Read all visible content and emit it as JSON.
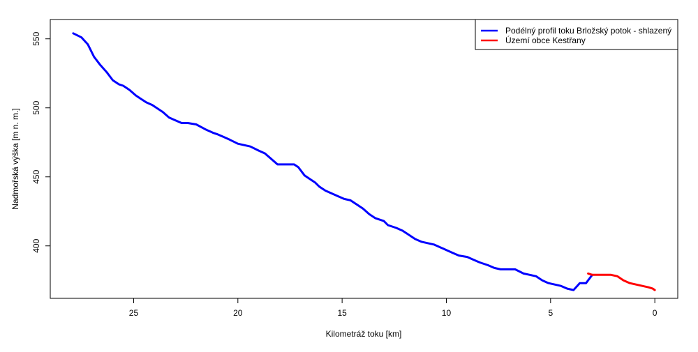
{
  "chart_data": {
    "type": "line",
    "title": "",
    "xlabel": "Kilometráž toku [km]",
    "ylabel": "Nadmořská výška [m n. m.]",
    "xlim": [
      29.0,
      -1.1
    ],
    "ylim": [
      362,
      564
    ],
    "x_ticks": [
      25,
      20,
      15,
      10,
      5,
      0
    ],
    "y_ticks": [
      400,
      450,
      500,
      550
    ],
    "legend_position": "top-right",
    "series": [
      {
        "name": "Podélný profil toku Brložský potok - shlazený",
        "color": "#0000ff",
        "x": [
          27.9,
          27.5,
          27.2,
          26.9,
          26.6,
          26.3,
          26.0,
          25.7,
          25.5,
          25.2,
          24.9,
          24.7,
          24.4,
          24.1,
          23.9,
          23.6,
          23.3,
          23.0,
          22.7,
          22.4,
          22.0,
          21.5,
          21.2,
          21.0,
          20.7,
          20.4,
          20.0,
          19.7,
          19.4,
          19.0,
          18.7,
          18.4,
          18.1,
          17.8,
          17.6,
          17.3,
          17.1,
          16.8,
          16.5,
          16.3,
          16.1,
          15.8,
          15.5,
          15.2,
          14.9,
          14.6,
          14.3,
          14.0,
          13.7,
          13.4,
          13.0,
          12.8,
          12.4,
          12.1,
          11.8,
          11.5,
          11.2,
          10.9,
          10.6,
          10.3,
          10.0,
          9.7,
          9.4,
          9.0,
          8.7,
          8.4,
          8.0,
          7.7,
          7.4,
          7.0,
          6.7,
          6.3,
          6.0,
          5.7,
          5.4,
          5.1,
          4.8,
          4.5,
          4.2,
          3.9,
          3.6,
          3.3,
          3.0
        ],
        "y": [
          554,
          551,
          546,
          537,
          531,
          526,
          520,
          517,
          516,
          513,
          509,
          507,
          504,
          502,
          500,
          497,
          493,
          491,
          489,
          489,
          488,
          484,
          482,
          481,
          479,
          477,
          474,
          473,
          472,
          469,
          467,
          463,
          459,
          459,
          459,
          459,
          457,
          451,
          448,
          446,
          443,
          440,
          438,
          436,
          434,
          433,
          430,
          427,
          423,
          420,
          418,
          415,
          413,
          411,
          408,
          405,
          403,
          402,
          401,
          399,
          397,
          395,
          393,
          392,
          390,
          388,
          386,
          384,
          383,
          383,
          383,
          380,
          379,
          378,
          375,
          373,
          372,
          371,
          369,
          368,
          373,
          373,
          379
        ]
      },
      {
        "name": "Území obce Kestřany",
        "color": "#ff0000",
        "x": [
          3.2,
          3.0,
          2.7,
          2.4,
          2.1,
          1.8,
          1.5,
          1.2,
          0.9,
          0.6,
          0.3,
          0.1,
          0.0
        ],
        "y": [
          380,
          379,
          379,
          379,
          379,
          378,
          375,
          373,
          372,
          371,
          370,
          369,
          368
        ]
      }
    ]
  }
}
